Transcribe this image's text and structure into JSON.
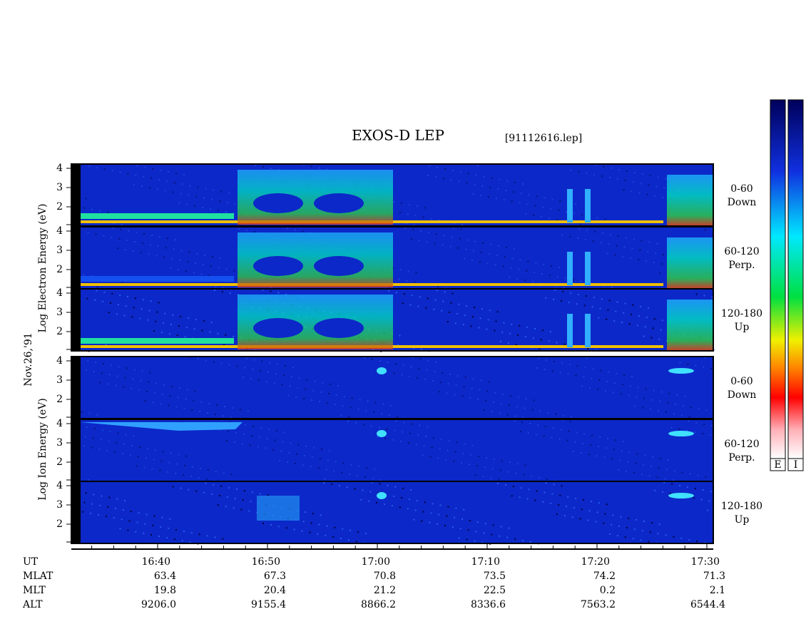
{
  "header": {
    "title": "EXOS-D LEP",
    "file": "[91112616.lep]",
    "date": "Nov.26,'91"
  },
  "axes": {
    "electron_label": "Log  Electron  Energy (eV)",
    "ion_label": "Log  Ion  Energy (eV)",
    "energy_ticks": [
      "4",
      "3",
      "2"
    ]
  },
  "panels": [
    {
      "species": "electron",
      "range": "0-60",
      "direction": "Down"
    },
    {
      "species": "electron",
      "range": "60-120",
      "direction": "Perp."
    },
    {
      "species": "electron",
      "range": "120-180",
      "direction": "Up"
    },
    {
      "species": "ion",
      "range": "0-60",
      "direction": "Down"
    },
    {
      "species": "ion",
      "range": "60-120",
      "direction": "Perp."
    },
    {
      "species": "ion",
      "range": "120-180",
      "direction": "Up"
    }
  ],
  "colorbars": [
    "E",
    "I"
  ],
  "table": {
    "rows": [
      {
        "label": "UT",
        "values": [
          "16:40",
          "16:50",
          "17:00",
          "17:10",
          "17:20",
          "17:30"
        ]
      },
      {
        "label": "MLAT",
        "values": [
          "63.4",
          "67.3",
          "70.8",
          "73.5",
          "74.2",
          "71.3"
        ]
      },
      {
        "label": "MLT",
        "values": [
          "19.8",
          "20.4",
          "21.2",
          "22.5",
          "0.2",
          "2.1"
        ]
      },
      {
        "label": "ALT",
        "values": [
          "9206.0",
          "9155.4",
          "8866.2",
          "8336.6",
          "7563.2",
          "6544.4"
        ]
      }
    ]
  }
}
